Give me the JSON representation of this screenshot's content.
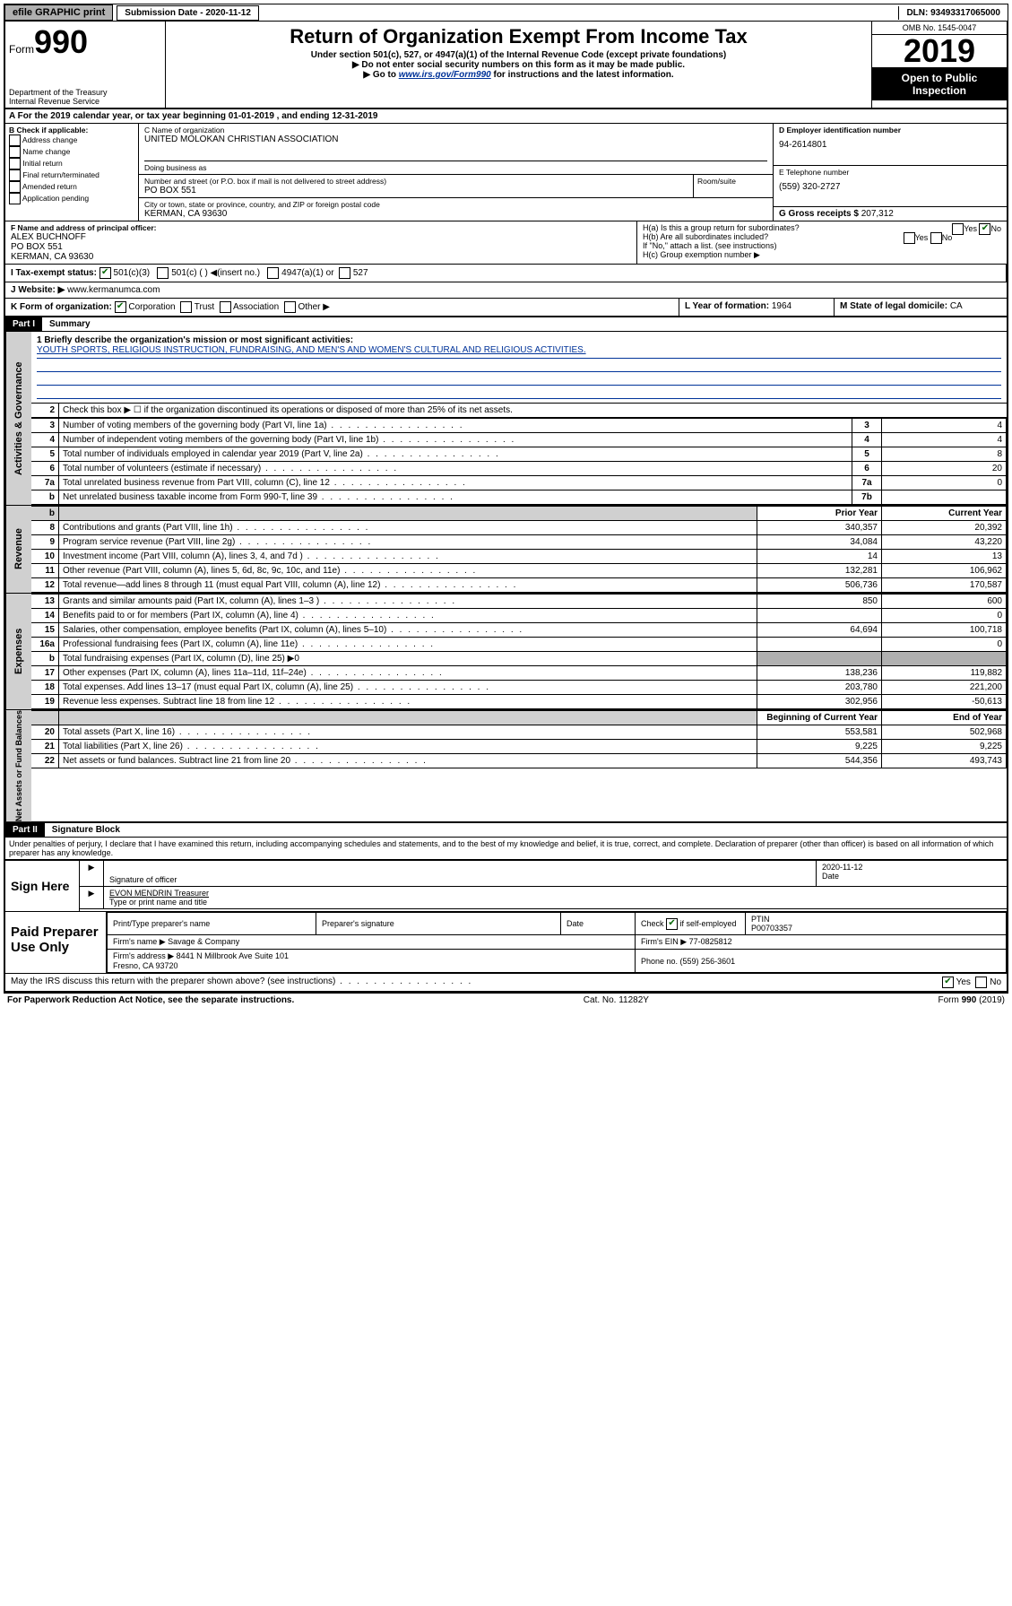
{
  "topbar": {
    "efile": "efile GRAPHIC print",
    "subdate_label": "Submission Date - ",
    "subdate": "2020-11-12",
    "dln_label": "DLN: ",
    "dln": "93493317065000"
  },
  "header": {
    "form_label": "Form",
    "form_num": "990",
    "dept": "Department of the Treasury\nInternal Revenue Service",
    "title": "Return of Organization Exempt From Income Tax",
    "sub1": "Under section 501(c), 527, or 4947(a)(1) of the Internal Revenue Code (except private foundations)",
    "sub2": "▶ Do not enter social security numbers on this form as it may be made public.",
    "sub3a": "▶ Go to ",
    "sub3_link": "www.irs.gov/Form990",
    "sub3b": " for instructions and the latest information.",
    "omb": "OMB No. 1545-0047",
    "year": "2019",
    "openpub": "Open to Public Inspection"
  },
  "rowA": "A   For the 2019 calendar year, or tax year beginning 01-01-2019    , and ending 12-31-2019",
  "colB": {
    "label": "B Check if applicable:",
    "items": [
      "Address change",
      "Name change",
      "Initial return",
      "Final return/terminated",
      "Amended return",
      "Application pending"
    ]
  },
  "org": {
    "name_label": "C Name of organization",
    "name": "UNITED MOLOKAN CHRISTIAN ASSOCIATION",
    "dba_label": "Doing business as",
    "addr_label": "Number and street (or P.O. box if mail is not delivered to street address)",
    "addr": "PO BOX 551",
    "room_label": "Room/suite",
    "city_label": "City or town, state or province, country, and ZIP or foreign postal code",
    "city": "KERMAN, CA  93630"
  },
  "right": {
    "ein_label": "D Employer identification number",
    "ein": "94-2614801",
    "tel_label": "E Telephone number",
    "tel": "(559) 320-2727",
    "gross_label": "G Gross receipts $ ",
    "gross": "207,312"
  },
  "officer": {
    "label": "F  Name and address of principal officer:",
    "name": "ALEX BUCHNOFF",
    "addr": "PO BOX 551",
    "city": "KERMAN, CA  93630"
  },
  "H": {
    "a": "H(a)  Is this a group return for subordinates?",
    "b": "H(b)  Are all subordinates included?",
    "b_note": "If \"No,\" attach a list. (see instructions)",
    "c": "H(c)  Group exemption number ▶"
  },
  "I": {
    "label": "I   Tax-exempt status:",
    "opt1": "501(c)(3)",
    "opt2": "501(c) (  ) ◀(insert no.)",
    "opt3": "4947(a)(1) or",
    "opt4": "527"
  },
  "J": {
    "label": "J   Website: ▶ ",
    "val": "www.kermanumca.com"
  },
  "K": {
    "label": "K Form of organization:",
    "opts": [
      "Corporation",
      "Trust",
      "Association",
      "Other ▶"
    ],
    "L_label": "L Year of formation: ",
    "L_val": "1964",
    "M_label": "M State of legal domicile: ",
    "M_val": "CA"
  },
  "part1": {
    "label": "Part I",
    "title": "Summary",
    "q1": "1  Briefly describe the organization's mission or most significant activities:",
    "mission": "YOUTH SPORTS, RELIGIOUS INSTRUCTION, FUNDRAISING, AND MEN'S AND WOMEN'S CULTURAL AND RELIGIOUS ACTIVITIES.",
    "q2": "Check this box ▶ ☐  if the organization discontinued its operations or disposed of more than 25% of its net assets.",
    "rows_gov": [
      {
        "n": "3",
        "desc": "Number of voting members of the governing body (Part VI, line 1a)",
        "box": "3",
        "val": "4"
      },
      {
        "n": "4",
        "desc": "Number of independent voting members of the governing body (Part VI, line 1b)",
        "box": "4",
        "val": "4"
      },
      {
        "n": "5",
        "desc": "Total number of individuals employed in calendar year 2019 (Part V, line 2a)",
        "box": "5",
        "val": "8"
      },
      {
        "n": "6",
        "desc": "Total number of volunteers (estimate if necessary)",
        "box": "6",
        "val": "20"
      },
      {
        "n": "7a",
        "desc": "Total unrelated business revenue from Part VIII, column (C), line 12",
        "box": "7a",
        "val": "0"
      },
      {
        "n": "b",
        "desc": "Net unrelated business taxable income from Form 990-T, line 39",
        "box": "7b",
        "val": ""
      }
    ],
    "col_prior": "Prior Year",
    "col_curr": "Current Year",
    "rows_rev": [
      {
        "n": "8",
        "desc": "Contributions and grants (Part VIII, line 1h)",
        "prior": "340,357",
        "curr": "20,392"
      },
      {
        "n": "9",
        "desc": "Program service revenue (Part VIII, line 2g)",
        "prior": "34,084",
        "curr": "43,220"
      },
      {
        "n": "10",
        "desc": "Investment income (Part VIII, column (A), lines 3, 4, and 7d )",
        "prior": "14",
        "curr": "13"
      },
      {
        "n": "11",
        "desc": "Other revenue (Part VIII, column (A), lines 5, 6d, 8c, 9c, 10c, and 11e)",
        "prior": "132,281",
        "curr": "106,962"
      },
      {
        "n": "12",
        "desc": "Total revenue—add lines 8 through 11 (must equal Part VIII, column (A), line 12)",
        "prior": "506,736",
        "curr": "170,587"
      }
    ],
    "rows_exp": [
      {
        "n": "13",
        "desc": "Grants and similar amounts paid (Part IX, column (A), lines 1–3 )",
        "prior": "850",
        "curr": "600"
      },
      {
        "n": "14",
        "desc": "Benefits paid to or for members (Part IX, column (A), line 4)",
        "prior": "",
        "curr": "0"
      },
      {
        "n": "15",
        "desc": "Salaries, other compensation, employee benefits (Part IX, column (A), lines 5–10)",
        "prior": "64,694",
        "curr": "100,718"
      },
      {
        "n": "16a",
        "desc": "Professional fundraising fees (Part IX, column (A), line 11e)",
        "prior": "",
        "curr": "0"
      },
      {
        "n": "b",
        "desc": "Total fundraising expenses (Part IX, column (D), line 25) ▶0",
        "prior": "—shade—",
        "curr": "—shade—"
      },
      {
        "n": "17",
        "desc": "Other expenses (Part IX, column (A), lines 11a–11d, 11f–24e)",
        "prior": "138,236",
        "curr": "119,882"
      },
      {
        "n": "18",
        "desc": "Total expenses. Add lines 13–17 (must equal Part IX, column (A), line 25)",
        "prior": "203,780",
        "curr": "221,200"
      },
      {
        "n": "19",
        "desc": "Revenue less expenses. Subtract line 18 from line 12",
        "prior": "302,956",
        "curr": "-50,613"
      }
    ],
    "col_beg": "Beginning of Current Year",
    "col_end": "End of Year",
    "rows_net": [
      {
        "n": "20",
        "desc": "Total assets (Part X, line 16)",
        "prior": "553,581",
        "curr": "502,968"
      },
      {
        "n": "21",
        "desc": "Total liabilities (Part X, line 26)",
        "prior": "9,225",
        "curr": "9,225"
      },
      {
        "n": "22",
        "desc": "Net assets or fund balances. Subtract line 21 from line 20",
        "prior": "544,356",
        "curr": "493,743"
      }
    ]
  },
  "part2": {
    "label": "Part II",
    "title": "Signature Block",
    "declare": "Under penalties of perjury, I declare that I have examined this return, including accompanying schedules and statements, and to the best of my knowledge and belief, it is true, correct, and complete. Declaration of preparer (other than officer) is based on all information of which preparer has any knowledge."
  },
  "sign": {
    "label": "Sign Here",
    "sig_label": "Signature of officer",
    "date": "2020-11-12",
    "date_label": "Date",
    "name": "EVON MENDRIN  Treasurer",
    "name_label": "Type or print name and title"
  },
  "prep": {
    "label": "Paid Preparer Use Only",
    "c1": "Print/Type preparer's name",
    "c2": "Preparer's signature",
    "c3": "Date",
    "c4a": "Check ",
    "c4b": " if self-employed",
    "c5": "PTIN",
    "ptin": "P00703357",
    "firm_label": "Firm's name    ▶ ",
    "firm": "Savage & Company",
    "ein_label": "Firm's EIN ▶ ",
    "ein": "77-0825812",
    "addr_label": "Firm's address ▶ ",
    "addr": "8441 N Millbrook Ave Suite 101\nFresno, CA  93720",
    "phone_label": "Phone no. ",
    "phone": "(559) 256-3601"
  },
  "discuss": "May the IRS discuss this return with the preparer shown above? (see instructions)",
  "footer": {
    "left": "For Paperwork Reduction Act Notice, see the separate instructions.",
    "mid": "Cat. No. 11282Y",
    "right": "Form 990 (2019)"
  },
  "side": {
    "gov": "Activities & Governance",
    "rev": "Revenue",
    "exp": "Expenses",
    "net": "Net Assets or Fund Balances"
  }
}
